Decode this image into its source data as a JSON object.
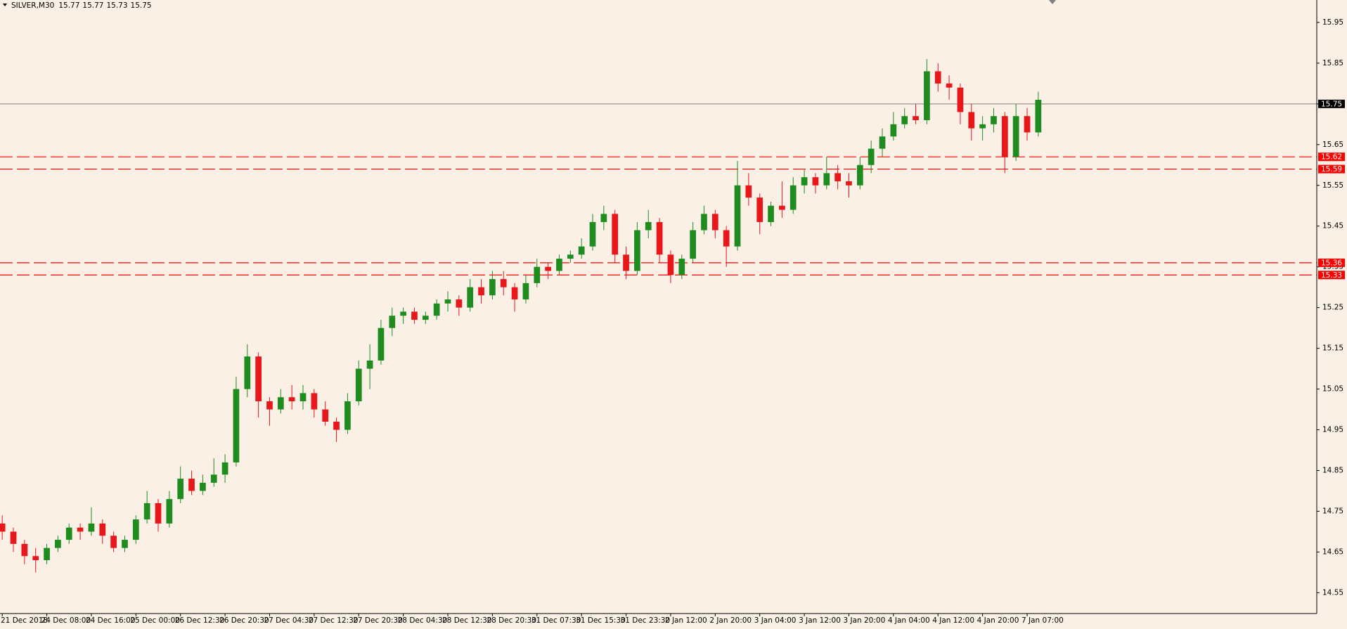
{
  "chart_data": {
    "type": "candlestick",
    "title": "SILVER,M30",
    "header_ohlc": [
      15.77,
      15.77,
      15.73,
      15.75
    ],
    "up_color": "#1e8c1e",
    "down_color": "#e8171c",
    "background": "#faf0e6",
    "xlim": [
      -0.2,
      118
    ],
    "ylim": [
      14.499,
      16.005
    ],
    "yticks": [
      14.55,
      14.65,
      14.75,
      14.85,
      14.95,
      15.05,
      15.15,
      15.25,
      15.35,
      15.45,
      15.55,
      15.65,
      15.75,
      15.85,
      15.95
    ],
    "xticks": [
      {
        "value": 0,
        "label": "21 Dec 2018"
      },
      {
        "value": 4,
        "label": "24 Dec 08:00"
      },
      {
        "value": 8,
        "label": "24 Dec 16:00"
      },
      {
        "value": 12,
        "label": "25 Dec 00:00"
      },
      {
        "value": 16,
        "label": "26 Dec 12:30"
      },
      {
        "value": 20,
        "label": "26 Dec 20:30"
      },
      {
        "value": 24,
        "label": "27 Dec 04:30"
      },
      {
        "value": 28,
        "label": "27 Dec 12:30"
      },
      {
        "value": 32,
        "label": "27 Dec 20:30"
      },
      {
        "value": 36,
        "label": "28 Dec 04:30"
      },
      {
        "value": 40,
        "label": "28 Dec 12:30"
      },
      {
        "value": 44,
        "label": "28 Dec 20:30"
      },
      {
        "value": 48,
        "label": "31 Dec 07:30"
      },
      {
        "value": 52,
        "label": "31 Dec 15:30"
      },
      {
        "value": 56,
        "label": "31 Dec 23:30"
      },
      {
        "value": 60,
        "label": "2 Jan 12:00"
      },
      {
        "value": 64,
        "label": "2 Jan 20:00"
      },
      {
        "value": 68,
        "label": "3 Jan 04:00"
      },
      {
        "value": 72,
        "label": "3 Jan 12:00"
      },
      {
        "value": 76,
        "label": "3 Jan 20:00"
      },
      {
        "value": 80,
        "label": "4 Jan 04:00"
      },
      {
        "value": 84,
        "label": "4 Jan 12:00"
      },
      {
        "value": 88,
        "label": "4 Jan 20:00"
      },
      {
        "value": 92,
        "label": "7 Jan 07:00"
      }
    ],
    "price_line": {
      "value": 15.75,
      "color": "#808080"
    },
    "levels": [
      {
        "value": 15.62,
        "color": "#ff0000"
      },
      {
        "value": 15.59,
        "color": "#ff0000"
      },
      {
        "value": 15.36,
        "color": "#ff0000"
      },
      {
        "value": 15.33,
        "color": "#ff0000"
      }
    ],
    "candles": [
      [
        14.72,
        14.74,
        14.68,
        14.7
      ],
      [
        14.7,
        14.71,
        14.65,
        14.67
      ],
      [
        14.67,
        14.68,
        14.62,
        14.64
      ],
      [
        14.64,
        14.66,
        14.6,
        14.63
      ],
      [
        14.63,
        14.67,
        14.62,
        14.66
      ],
      [
        14.66,
        14.69,
        14.65,
        14.68
      ],
      [
        14.68,
        14.72,
        14.67,
        14.71
      ],
      [
        14.71,
        14.72,
        14.68,
        14.7
      ],
      [
        14.7,
        14.76,
        14.69,
        14.72
      ],
      [
        14.72,
        14.73,
        14.67,
        14.69
      ],
      [
        14.69,
        14.7,
        14.65,
        14.66
      ],
      [
        14.66,
        14.69,
        14.65,
        14.68
      ],
      [
        14.68,
        14.74,
        14.67,
        14.73
      ],
      [
        14.73,
        14.8,
        14.72,
        14.77
      ],
      [
        14.77,
        14.78,
        14.7,
        14.72
      ],
      [
        14.72,
        14.8,
        14.71,
        14.78
      ],
      [
        14.78,
        14.86,
        14.77,
        14.83
      ],
      [
        14.83,
        14.85,
        14.79,
        14.8
      ],
      [
        14.8,
        14.84,
        14.79,
        14.82
      ],
      [
        14.82,
        14.88,
        14.81,
        14.84
      ],
      [
        14.84,
        14.89,
        14.82,
        14.87
      ],
      [
        14.87,
        15.08,
        14.86,
        15.05
      ],
      [
        15.05,
        15.16,
        15.03,
        15.13
      ],
      [
        15.13,
        15.14,
        14.98,
        15.02
      ],
      [
        15.02,
        15.03,
        14.96,
        15.0
      ],
      [
        15.0,
        15.05,
        14.99,
        15.03
      ],
      [
        15.03,
        15.06,
        15.0,
        15.02
      ],
      [
        15.02,
        15.06,
        15.0,
        15.04
      ],
      [
        15.04,
        15.05,
        14.98,
        15.0
      ],
      [
        15.0,
        15.02,
        14.96,
        14.97
      ],
      [
        14.97,
        14.98,
        14.92,
        14.95
      ],
      [
        14.95,
        15.04,
        14.94,
        15.02
      ],
      [
        15.02,
        15.12,
        15.01,
        15.1
      ],
      [
        15.1,
        15.16,
        15.05,
        15.12
      ],
      [
        15.12,
        15.22,
        15.11,
        15.2
      ],
      [
        15.2,
        15.25,
        15.18,
        15.23
      ],
      [
        15.23,
        15.25,
        15.21,
        15.24
      ],
      [
        15.24,
        15.25,
        15.21,
        15.22
      ],
      [
        15.22,
        15.24,
        15.21,
        15.23
      ],
      [
        15.23,
        15.27,
        15.22,
        15.26
      ],
      [
        15.26,
        15.29,
        15.24,
        15.27
      ],
      [
        15.27,
        15.28,
        15.23,
        15.25
      ],
      [
        15.25,
        15.32,
        15.24,
        15.3
      ],
      [
        15.3,
        15.32,
        15.26,
        15.28
      ],
      [
        15.28,
        15.34,
        15.27,
        15.32
      ],
      [
        15.32,
        15.34,
        15.28,
        15.3
      ],
      [
        15.3,
        15.31,
        15.24,
        15.27
      ],
      [
        15.27,
        15.33,
        15.26,
        15.31
      ],
      [
        15.31,
        15.37,
        15.3,
        15.35
      ],
      [
        15.35,
        15.36,
        15.32,
        15.34
      ],
      [
        15.34,
        15.38,
        15.33,
        15.37
      ],
      [
        15.37,
        15.39,
        15.36,
        15.38
      ],
      [
        15.38,
        15.42,
        15.37,
        15.4
      ],
      [
        15.4,
        15.48,
        15.39,
        15.46
      ],
      [
        15.46,
        15.5,
        15.44,
        15.48
      ],
      [
        15.48,
        15.49,
        15.36,
        15.38
      ],
      [
        15.38,
        15.4,
        15.32,
        15.34
      ],
      [
        15.34,
        15.46,
        15.33,
        15.44
      ],
      [
        15.44,
        15.49,
        15.42,
        15.46
      ],
      [
        15.46,
        15.47,
        15.36,
        15.38
      ],
      [
        15.38,
        15.39,
        15.31,
        15.33
      ],
      [
        15.33,
        15.38,
        15.32,
        15.37
      ],
      [
        15.37,
        15.46,
        15.36,
        15.44
      ],
      [
        15.44,
        15.5,
        15.43,
        15.48
      ],
      [
        15.48,
        15.49,
        15.42,
        15.44
      ],
      [
        15.44,
        15.45,
        15.35,
        15.4
      ],
      [
        15.4,
        15.61,
        15.39,
        15.55
      ],
      [
        15.55,
        15.58,
        15.5,
        15.52
      ],
      [
        15.52,
        15.53,
        15.43,
        15.46
      ],
      [
        15.46,
        15.51,
        15.45,
        15.5
      ],
      [
        15.5,
        15.56,
        15.47,
        15.49
      ],
      [
        15.49,
        15.57,
        15.48,
        15.55
      ],
      [
        15.55,
        15.59,
        15.53,
        15.57
      ],
      [
        15.57,
        15.58,
        15.53,
        15.55
      ],
      [
        15.55,
        15.62,
        15.54,
        15.58
      ],
      [
        15.58,
        15.6,
        15.54,
        15.56
      ],
      [
        15.56,
        15.58,
        15.52,
        15.55
      ],
      [
        15.55,
        15.62,
        15.54,
        15.6
      ],
      [
        15.6,
        15.66,
        15.58,
        15.64
      ],
      [
        15.64,
        15.69,
        15.62,
        15.67
      ],
      [
        15.67,
        15.73,
        15.66,
        15.7
      ],
      [
        15.7,
        15.74,
        15.69,
        15.72
      ],
      [
        15.72,
        15.75,
        15.7,
        15.71
      ],
      [
        15.71,
        15.86,
        15.7,
        15.83
      ],
      [
        15.83,
        15.85,
        15.78,
        15.8
      ],
      [
        15.8,
        15.82,
        15.76,
        15.79
      ],
      [
        15.79,
        15.8,
        15.7,
        15.73
      ],
      [
        15.73,
        15.75,
        15.66,
        15.69
      ],
      [
        15.69,
        15.72,
        15.66,
        15.7
      ],
      [
        15.7,
        15.74,
        15.68,
        15.72
      ],
      [
        15.72,
        15.73,
        15.58,
        15.62
      ],
      [
        15.62,
        15.75,
        15.61,
        15.72
      ],
      [
        15.72,
        15.74,
        15.66,
        15.68
      ],
      [
        15.68,
        15.78,
        15.67,
        15.76
      ]
    ]
  }
}
